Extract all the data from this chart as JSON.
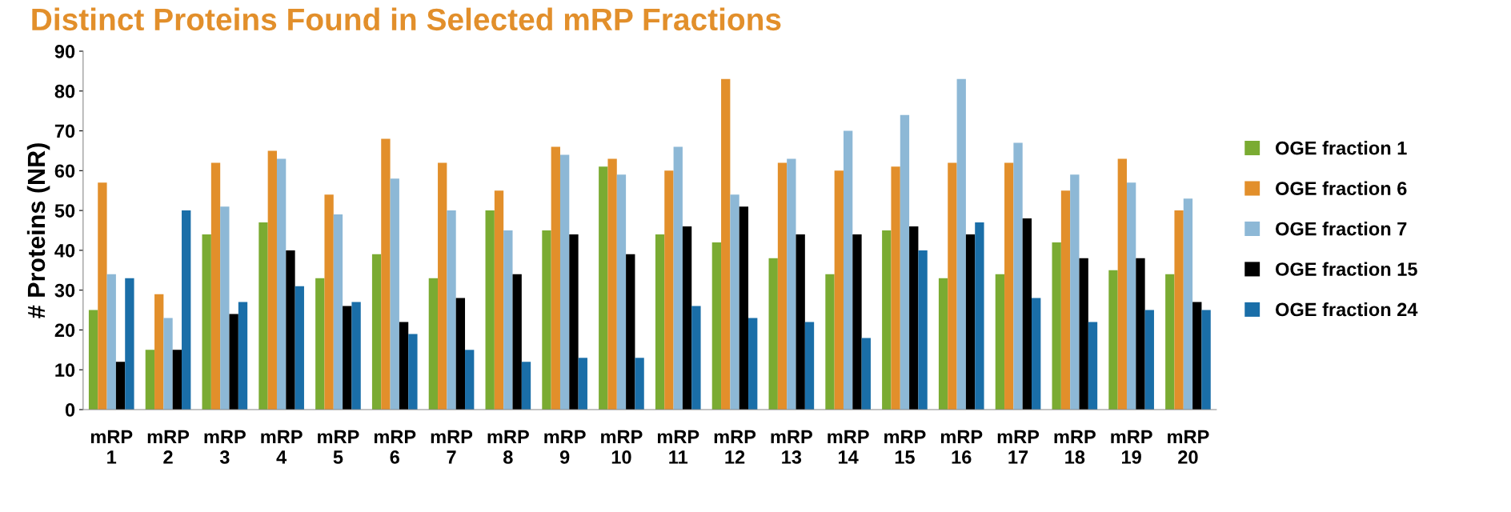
{
  "chart_data": {
    "type": "bar",
    "title": "Distinct Proteins Found in Selected mRP Fractions",
    "ylabel": "# Proteins (NR)",
    "categories": [
      "mRP\n1",
      "mRP\n2",
      "mRP\n3",
      "mRP\n4",
      "mRP\n5",
      "mRP\n6",
      "mRP\n7",
      "mRP\n8",
      "mRP\n9",
      "mRP\n10",
      "mRP\n11",
      "mRP\n12",
      "mRP\n13",
      "mRP\n14",
      "mRP\n15",
      "mRP\n16",
      "mRP\n17",
      "mRP\n18",
      "mRP\n19",
      "mRP\n20"
    ],
    "series": [
      {
        "name": "OGE fraction 1",
        "color": "#7aab32",
        "values": [
          25,
          15,
          44,
          47,
          33,
          39,
          33,
          50,
          45,
          61,
          44,
          42,
          38,
          34,
          45,
          33,
          34,
          42,
          35,
          34
        ]
      },
      {
        "name": "OGE fraction 6",
        "color": "#e28f2b",
        "values": [
          57,
          29,
          62,
          65,
          54,
          68,
          62,
          55,
          66,
          63,
          60,
          83,
          62,
          60,
          61,
          62,
          62,
          55,
          63,
          50
        ]
      },
      {
        "name": "OGE fraction 7",
        "color": "#8db8d6",
        "values": [
          34,
          23,
          51,
          63,
          49,
          58,
          50,
          45,
          64,
          59,
          66,
          54,
          63,
          70,
          74,
          83,
          67,
          59,
          57,
          53
        ]
      },
      {
        "name": "OGE fraction 15",
        "color": "#000000",
        "values": [
          12,
          15,
          24,
          40,
          26,
          22,
          28,
          34,
          44,
          39,
          46,
          51,
          44,
          44,
          46,
          44,
          48,
          38,
          38,
          27
        ]
      },
      {
        "name": "OGE fraction 24",
        "color": "#1a6ea8",
        "values": [
          33,
          50,
          27,
          31,
          27,
          19,
          15,
          12,
          13,
          13,
          26,
          23,
          22,
          18,
          40,
          47,
          28,
          22,
          25,
          25
        ]
      }
    ],
    "ylim": [
      0,
      90
    ],
    "yticks": [
      0,
      10,
      20,
      30,
      40,
      50,
      60,
      70,
      80,
      90
    ],
    "grid": false,
    "legend": "right"
  }
}
